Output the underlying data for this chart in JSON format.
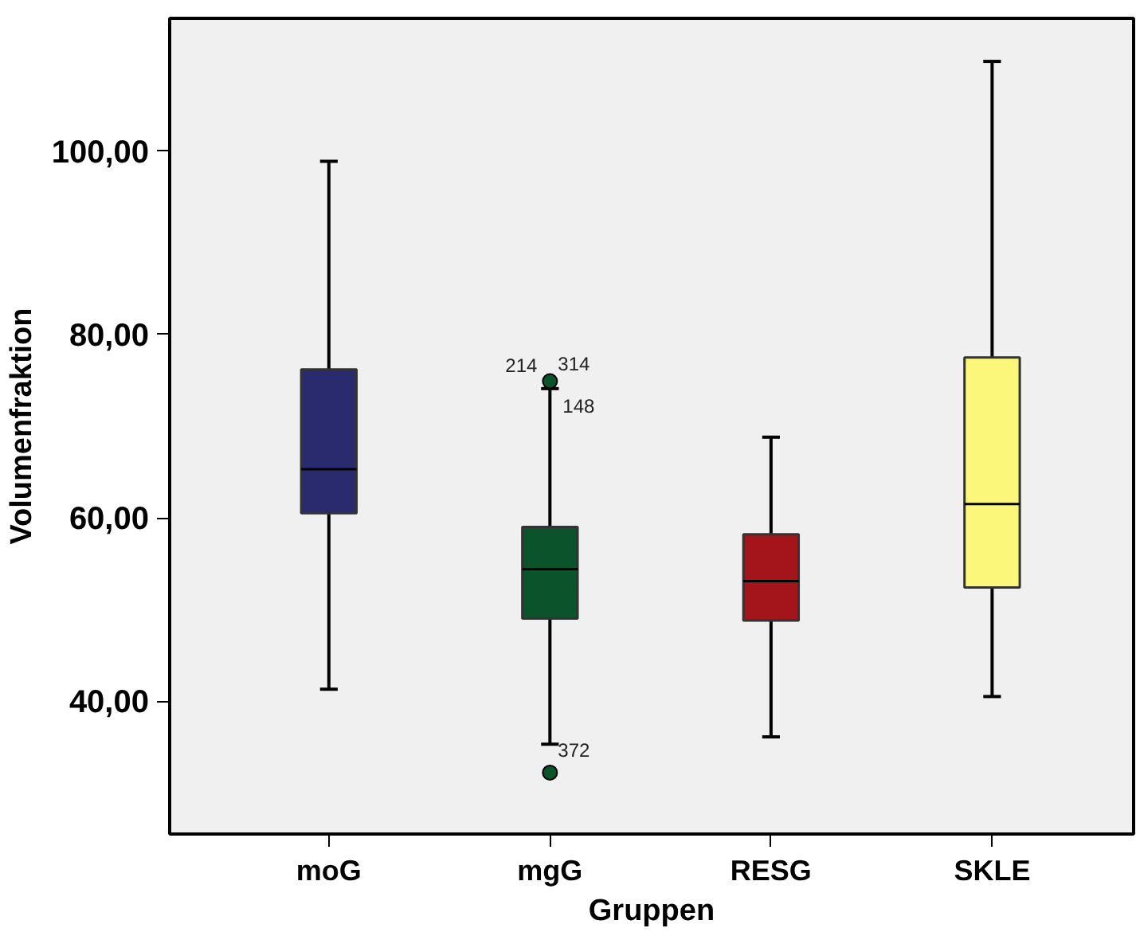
{
  "chart_data": {
    "type": "box",
    "xlabel": "Gruppen",
    "ylabel": "Volumenfraktion",
    "categories": [
      "moG",
      "mgG",
      "RESG",
      "SKLE"
    ],
    "colors": [
      "#2a2a6e",
      "#0b532b",
      "#a3141b",
      "#fbf77a"
    ],
    "boxes": [
      {
        "low": 41.3,
        "q1": 60.5,
        "median": 65.3,
        "q3": 76.2,
        "high": 98.9
      },
      {
        "low": 35.3,
        "q1": 49.0,
        "median": 54.4,
        "q3": 59.0,
        "high": 74.1,
        "outliers": [
          74.9,
          32.2
        ]
      },
      {
        "low": 36.1,
        "q1": 48.8,
        "median": 53.1,
        "q3": 58.2,
        "high": 68.8
      },
      {
        "low": 40.5,
        "q1": 52.4,
        "median": 61.5,
        "q3": 77.5,
        "high": 109.8
      }
    ],
    "ylim": [
      25.5,
      114.5
    ],
    "yticks": [
      {
        "value": 40,
        "label": "40,00"
      },
      {
        "value": 60,
        "label": "60,00"
      },
      {
        "value": 80,
        "label": "80,00"
      },
      {
        "value": 100,
        "label": "100,00"
      }
    ],
    "annotations": [
      {
        "text": "214",
        "x": "mgG",
        "y": 74.9
      },
      {
        "text": "314",
        "x": "mgG",
        "y": 74.9
      },
      {
        "text": "148",
        "x": "mgG",
        "y": 74.1
      },
      {
        "text": "372",
        "x": "mgG",
        "y": 35.3
      }
    ],
    "grid": false
  }
}
